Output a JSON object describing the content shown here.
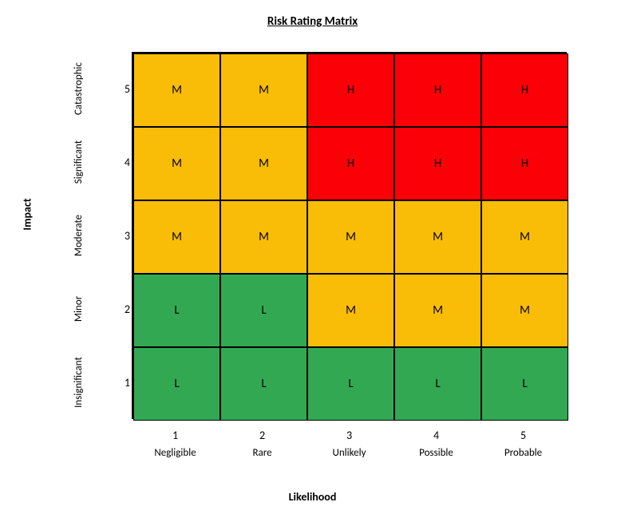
{
  "title": "Risk Rating Matrix",
  "y_axis_title": "Impact",
  "x_axis_title": "Likelihood",
  "matrix": {
    "type": "heatmap",
    "rows": 5,
    "cols": 5,
    "cell_border_color": "#000000",
    "cell_border_width": 1,
    "outer_border_width": 2,
    "cell_font_size": 15,
    "y_tick_values": [
      "5",
      "4",
      "3",
      "2",
      "1"
    ],
    "y_tick_labels": [
      "Catastrophic",
      "Significant",
      "Moderate",
      "Minor",
      "Insignificant"
    ],
    "x_tick_values": [
      "1",
      "2",
      "3",
      "4",
      "5"
    ],
    "x_tick_labels": [
      "Negligible",
      "Rare",
      "Unlikely",
      "Possible",
      "Probable"
    ],
    "colors": {
      "L": "#33a853",
      "M": "#f9bc07",
      "H": "#fb0007"
    },
    "cells": [
      [
        "M",
        "M",
        "H",
        "H",
        "H"
      ],
      [
        "M",
        "M",
        "H",
        "H",
        "H"
      ],
      [
        "M",
        "M",
        "M",
        "M",
        "M"
      ],
      [
        "L",
        "L",
        "M",
        "M",
        "M"
      ],
      [
        "L",
        "L",
        "L",
        "L",
        "L"
      ]
    ]
  },
  "styling": {
    "background_color": "#ffffff",
    "title_fontsize": 15,
    "title_weight": "bold",
    "title_underline": true,
    "axis_title_fontsize": 14,
    "axis_title_weight": "bold",
    "tick_fontsize": 14,
    "label_fontsize": 13,
    "font_family": "Calibri, Arial, sans-serif",
    "text_color": "#000000"
  }
}
